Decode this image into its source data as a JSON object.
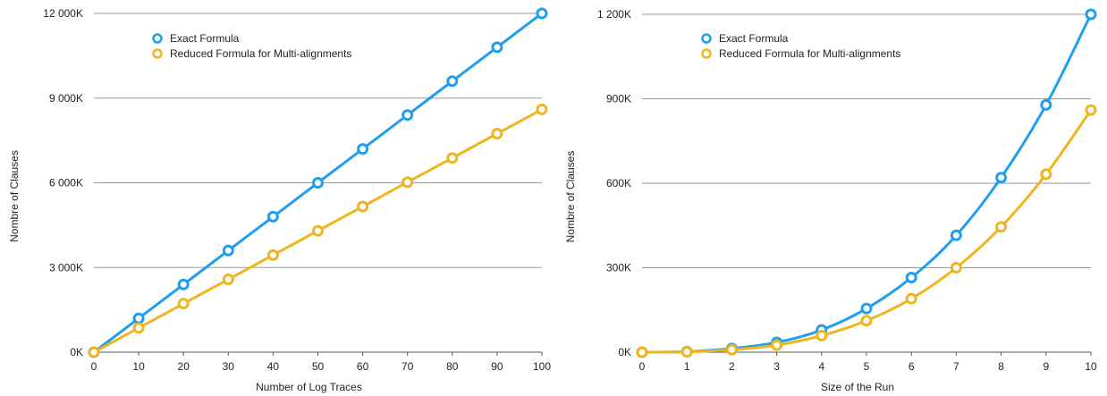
{
  "chart_data": [
    {
      "type": "line",
      "title": "",
      "xlabel": "Number of Log Traces",
      "ylabel": "Nombre of Clauses",
      "x": [
        0,
        10,
        20,
        30,
        40,
        50,
        60,
        70,
        80,
        90,
        100
      ],
      "x_tick_labels": [
        "0",
        "10",
        "20",
        "30",
        "40",
        "50",
        "60",
        "70",
        "80",
        "90",
        "100"
      ],
      "ylim": [
        0,
        12000
      ],
      "y_ticks": [
        0,
        3000,
        6000,
        9000,
        12000
      ],
      "y_tick_labels": [
        "0K",
        "3 000K",
        "6 000K",
        "9 000K",
        "12 000K"
      ],
      "grid": true,
      "legend_position": "top-left",
      "series": [
        {
          "name": "Exact Formula",
          "color": "#1f9ef0",
          "values": [
            0,
            1200,
            2400,
            3600,
            4800,
            6000,
            7200,
            8400,
            9600,
            10800,
            12000
          ]
        },
        {
          "name": "Reduced Formula for Multi-alignments",
          "color": "#f0b41e",
          "values": [
            0,
            860,
            1720,
            2580,
            3440,
            4300,
            5160,
            6020,
            6880,
            7740,
            8600
          ]
        }
      ]
    },
    {
      "type": "line",
      "title": "",
      "xlabel": "Size of the Run",
      "ylabel": "Nombre of Clauses",
      "x": [
        0,
        1,
        2,
        3,
        4,
        5,
        6,
        7,
        8,
        9,
        10
      ],
      "x_tick_labels": [
        "0",
        "1",
        "2",
        "3",
        "4",
        "5",
        "6",
        "7",
        "8",
        "9",
        "10"
      ],
      "ylim": [
        0,
        1200
      ],
      "y_ticks": [
        0,
        300,
        600,
        900,
        1200
      ],
      "y_tick_labels": [
        "0K",
        "300K",
        "600K",
        "900K",
        "1 200K"
      ],
      "grid": true,
      "legend_position": "top-left",
      "series": [
        {
          "name": "Exact Formula",
          "color": "#1f9ef0",
          "values": [
            0,
            2,
            13,
            35,
            79,
            155,
            265,
            415,
            620,
            878,
            1200
          ]
        },
        {
          "name": "Reduced Formula for Multi-alignments",
          "color": "#f0b41e",
          "values": [
            0,
            1,
            9,
            25,
            59,
            112,
            190,
            300,
            445,
            632,
            860
          ]
        }
      ]
    }
  ]
}
